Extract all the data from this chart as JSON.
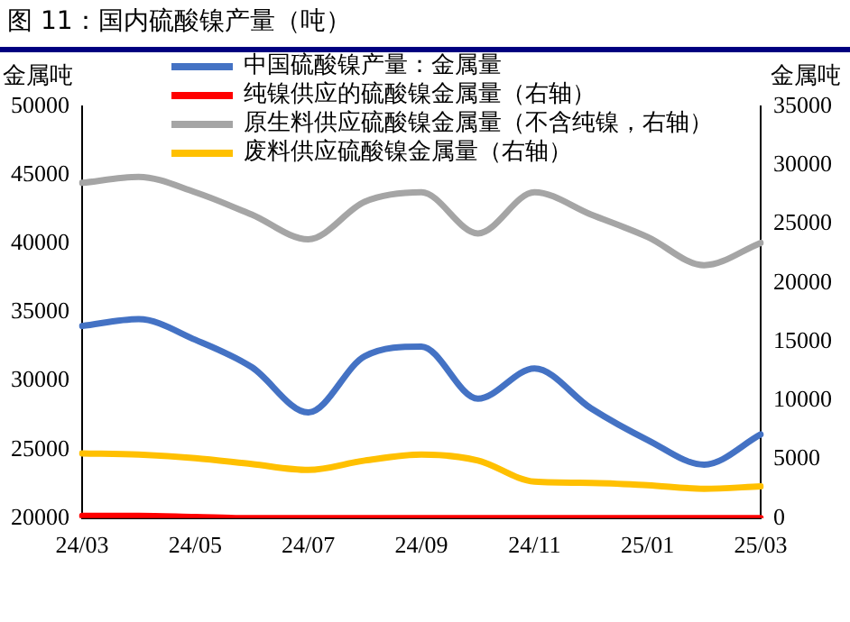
{
  "chart_data": {
    "type": "line",
    "title": "图 11：国内硫酸镍产量（吨）",
    "ylabel": "金属吨",
    "y2label": "金属吨",
    "categories": [
      "24/03",
      null,
      "24/05",
      null,
      "24/07",
      null,
      "24/09",
      null,
      "24/11",
      null,
      "25/01",
      null,
      "25/03"
    ],
    "ylim": [
      20000,
      50000
    ],
    "yticks": [
      20000,
      25000,
      30000,
      35000,
      40000,
      45000,
      50000
    ],
    "y2lim": [
      0,
      35000
    ],
    "y2ticks": [
      0,
      5000,
      10000,
      15000,
      20000,
      25000,
      30000,
      35000
    ],
    "grid": false,
    "legend": "top left",
    "marker": "none",
    "line_style": "solid",
    "series": [
      {
        "name": "中国硫酸镍产量：金属量",
        "color": "#4472c4",
        "values": [
          34000,
          34500,
          33000,
          31000,
          27700,
          31800,
          32500,
          28700,
          30900,
          28000,
          25700,
          23900,
          26100
        ]
      },
      {
        "name": "纯镍供应的硫酸镍金属量（右轴）",
        "color": "#ff0000",
        "axis": "y2",
        "values": [
          200,
          200,
          100,
          0,
          0,
          0,
          0,
          0,
          0,
          0,
          0,
          0,
          0
        ]
      },
      {
        "name": "原生料供应硫酸镍金属量（不含纯镍，右轴）",
        "color": "#a5a5a5",
        "axis": "y2",
        "values": [
          28500,
          29000,
          27700,
          25800,
          23700,
          26900,
          27700,
          24200,
          27700,
          25800,
          23900,
          21500,
          23400
        ]
      },
      {
        "name": "废料供应硫酸镍金属量（右轴）",
        "color": "#ffc000",
        "axis": "y2",
        "values": [
          5500,
          5400,
          5100,
          4600,
          4100,
          4900,
          5400,
          4900,
          3100,
          3000,
          2800,
          2500,
          2700
        ]
      }
    ]
  }
}
